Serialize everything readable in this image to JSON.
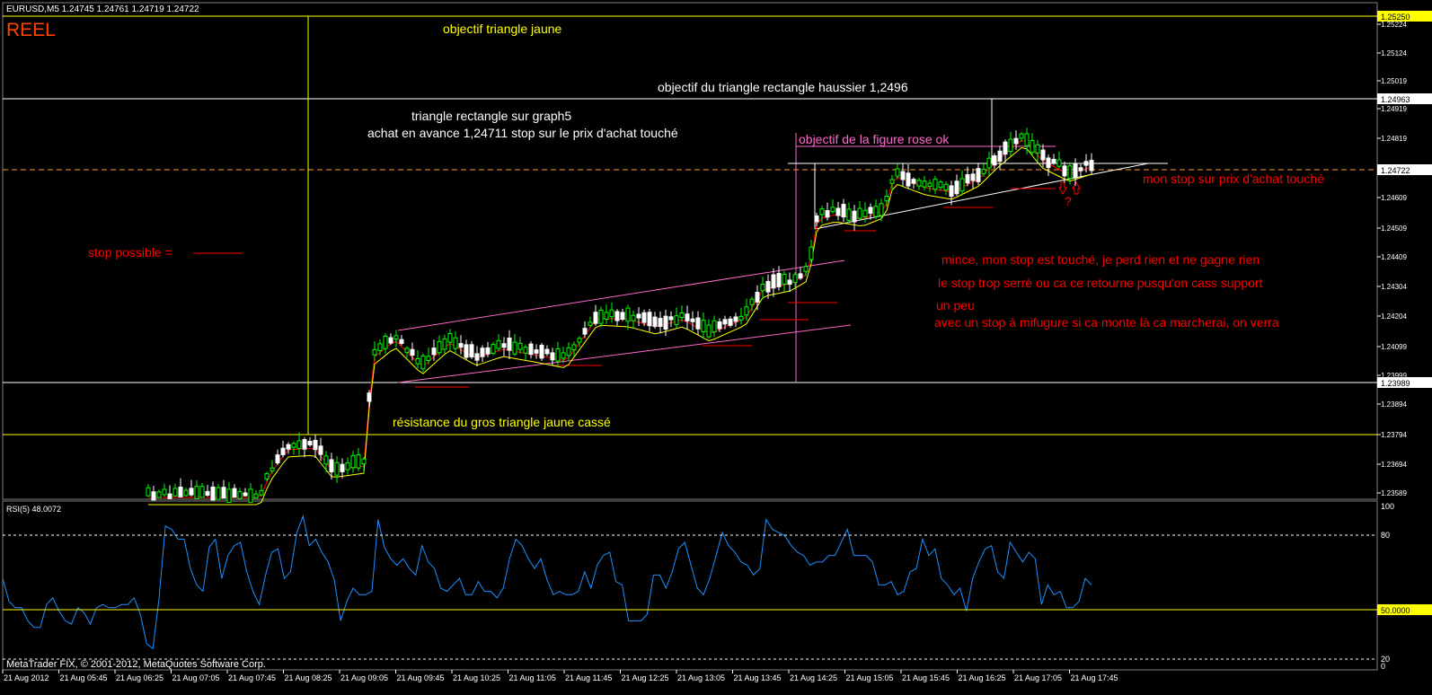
{
  "header": {
    "title": "EURUSD,M5  1.24745 1.24761 1.24719 1.24722",
    "badge": "REEL"
  },
  "annotations": [
    {
      "id": "obj-yellow",
      "text": "objectif triangle jaune",
      "color": "#ffff00"
    },
    {
      "id": "obj-rect",
      "text": "objectif du triangle rectangle haussier 1,2496",
      "color": "#ffffff"
    },
    {
      "id": "tri-rect",
      "text": "triangle rectangle sur graph5",
      "color": "#ffffff"
    },
    {
      "id": "achat",
      "text": "achat en avance 1,24711 stop sur le prix d'achat touché",
      "color": "#ffffff"
    },
    {
      "id": "obj-rose",
      "text": "objectif de la figure rose ok",
      "color": "#ff66cc"
    },
    {
      "id": "stop-possible",
      "text": "stop possible =",
      "color": "#ff0000"
    },
    {
      "id": "mon-stop",
      "text": "mon stop sur prix d'achat touché",
      "color": "#ff0000"
    },
    {
      "id": "mince",
      "text": "mince, mon stop est touché, je perd rien et ne gagne rien",
      "color": "#ff0000"
    },
    {
      "id": "trop-serre",
      "text": "le stop trop serré ou ca ce retourne pusqu'on cass support",
      "color": "#ff0000"
    },
    {
      "id": "un-peu",
      "text": "un peu",
      "color": "#ff0000"
    },
    {
      "id": "mifugure",
      "text": "avec un stop à mifugure si ca monte là ca marcherai, on verra",
      "color": "#ff0000"
    },
    {
      "id": "resistance",
      "text": "résistance du gros triangle jaune cassé",
      "color": "#ffff00"
    },
    {
      "id": "question",
      "text": "?",
      "color": "#ff0000"
    }
  ],
  "price_axis": {
    "labels": [
      "1.25224",
      "1.25124",
      "1.25019",
      "1.24919",
      "1.24819",
      "1.24609",
      "1.24509",
      "1.24409",
      "1.24304",
      "1.24204",
      "1.24099",
      "1.23999",
      "1.23894",
      "1.23794",
      "1.23694",
      "1.23589"
    ],
    "boxed": [
      {
        "text": "1.25250",
        "bg": "#ffff00",
        "fg": "#000000"
      },
      {
        "text": "1.24963",
        "bg": "#ffffff",
        "fg": "#000000"
      },
      {
        "text": "1.24722",
        "bg": "#ffffff",
        "fg": "#000000"
      },
      {
        "text": "1.23989",
        "bg": "#ffffff",
        "fg": "#000000"
      }
    ]
  },
  "rsi": {
    "label": "RSI(5) 48.0072",
    "axis_labels": [
      "100",
      "80",
      "20",
      "0"
    ],
    "level_box": "50.0000",
    "series": [
      56,
      42,
      38,
      38,
      30,
      26,
      26,
      40,
      44,
      36,
      30,
      28,
      38,
      35,
      28,
      38,
      40,
      38,
      38,
      40,
      40,
      44,
      34,
      16,
      13,
      44,
      88,
      86,
      80,
      80,
      62,
      52,
      48,
      75,
      80,
      56,
      70,
      76,
      78,
      60,
      48,
      40,
      58,
      72,
      74,
      56,
      60,
      84,
      94,
      76,
      80,
      72,
      66,
      55,
      30,
      42,
      50,
      46,
      46,
      48,
      92,
      75,
      68,
      64,
      68,
      62,
      58,
      76,
      66,
      62,
      50,
      48,
      52,
      56,
      46,
      46,
      54,
      48,
      48,
      44,
      50,
      68,
      80,
      76,
      68,
      62,
      68,
      55,
      46,
      48,
      46,
      46,
      48,
      60,
      50,
      64,
      70,
      72,
      54,
      52,
      30,
      30,
      30,
      34,
      58,
      58,
      50,
      60,
      74,
      78,
      64,
      50,
      46,
      56,
      70,
      84,
      76,
      72,
      66,
      64,
      58,
      62,
      92,
      86,
      84,
      82,
      76,
      72,
      70,
      64,
      66,
      66,
      70,
      70,
      78,
      86,
      70,
      70,
      70,
      66,
      52,
      52,
      54,
      46,
      48,
      60,
      62,
      80,
      70,
      74,
      56,
      52,
      46,
      50,
      36,
      56,
      66,
      74,
      76,
      60,
      56,
      78,
      72,
      66,
      72,
      68,
      40,
      52,
      46,
      48,
      38,
      38,
      42,
      56,
      52
    ],
    "colors": {
      "line": "#1e90ff",
      "level50": "#ffff00",
      "level_dash": "#ffffff"
    }
  },
  "time_axis": [
    "21 Aug 2012",
    "21 Aug 05:45",
    "21 Aug 06:25",
    "21 Aug 07:05",
    "21 Aug 07:45",
    "21 Aug 08:25",
    "21 Aug 09:05",
    "21 Aug 09:45",
    "21 Aug 10:25",
    "21 Aug 11:05",
    "21 Aug 11:45",
    "21 Aug 12:25",
    "21 Aug 13:05",
    "21 Aug 13:45",
    "21 Aug 14:25",
    "21 Aug 15:05",
    "21 Aug 15:45",
    "21 Aug 16:25",
    "21 Aug 17:05",
    "21 Aug 17:45"
  ],
  "copyright": "MetaTrader FIX, © 2001-2012, MetaQuotes Software Corp.",
  "colors": {
    "background": "#000000",
    "bull_candle": "#00ff00",
    "bear_candle": "#ffffff",
    "ma_fast": "#ff0000",
    "ma_slow": "#ffff00",
    "channel": "#ff66cc"
  }
}
